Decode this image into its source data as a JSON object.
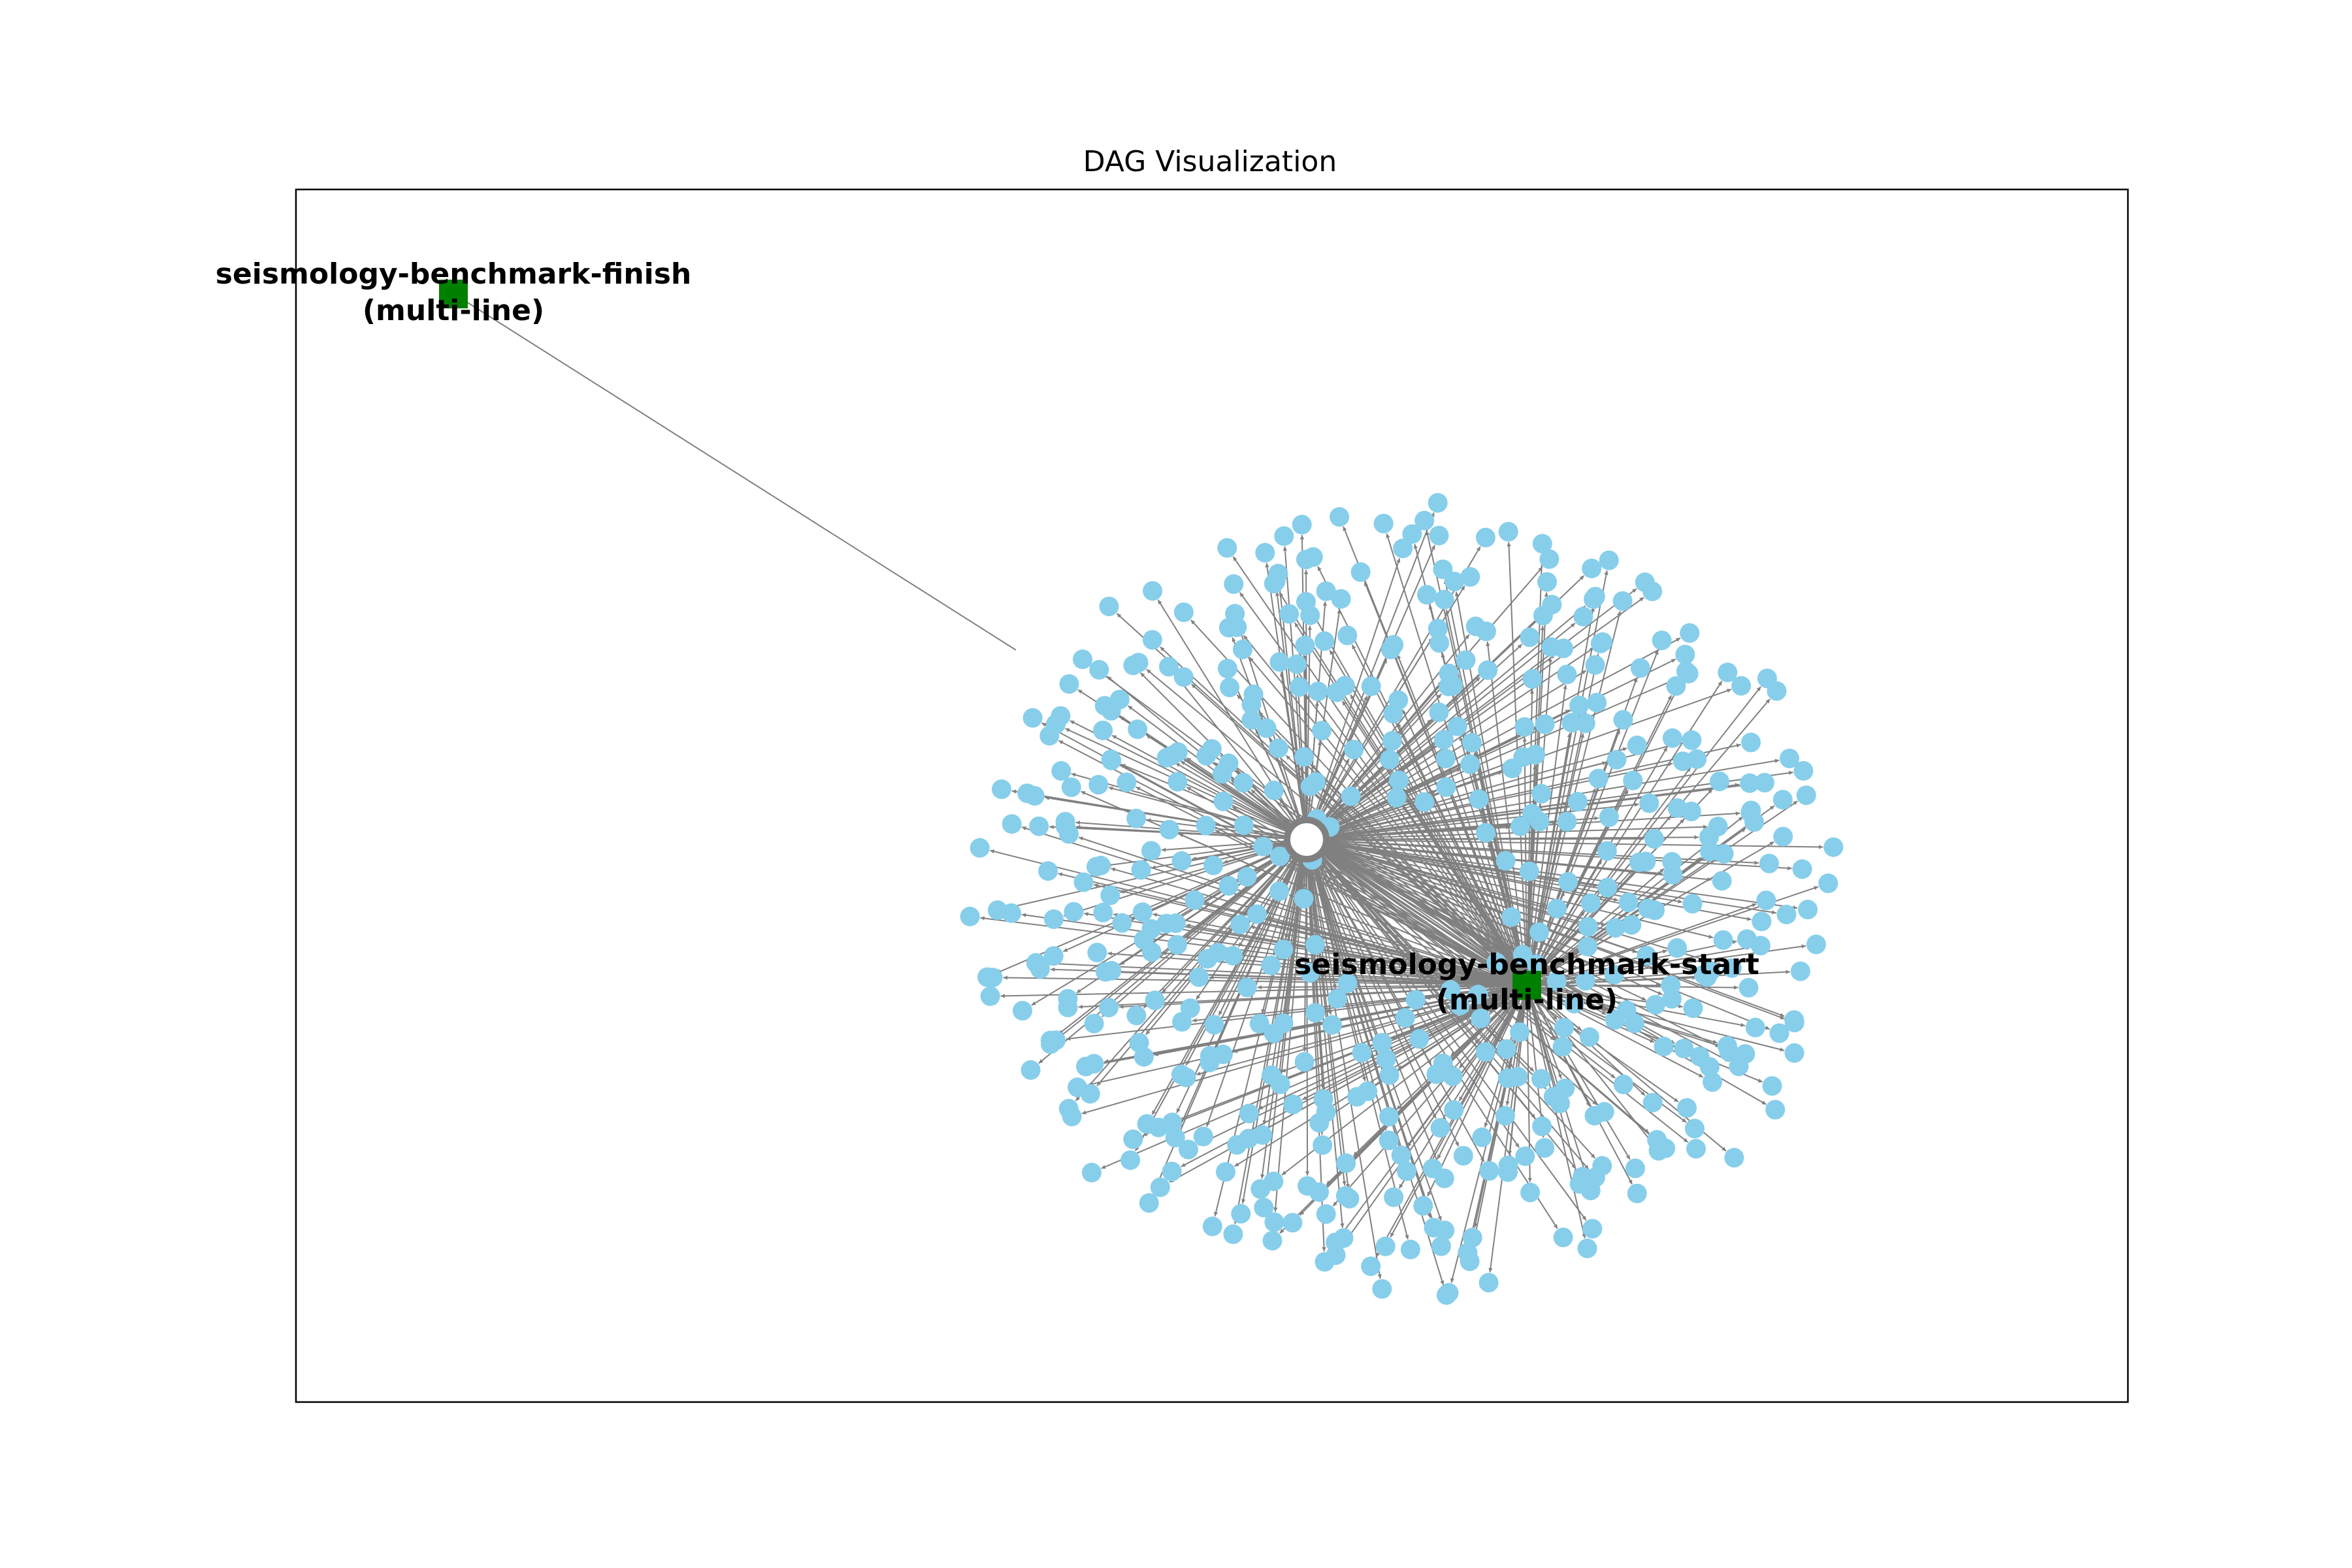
{
  "figure": {
    "title": "DAG Visualization"
  },
  "graph": {
    "colors": {
      "task_node": "#87ceeb",
      "endpoint_node": "#008000",
      "edge": "#808080",
      "frame": "#000000",
      "background": "#ffffff"
    },
    "nodes": {
      "finish": {
        "label_line1": "seismology-benchmark-finish",
        "label_line2": "(multi-line)",
        "shape": "square"
      },
      "start": {
        "label_line1": "seismology-benchmark-start",
        "label_line2": "(multi-line)",
        "shape": "square"
      }
    },
    "hub": {
      "shape": "ring"
    },
    "task_nodes": {
      "shape": "circle"
    }
  }
}
